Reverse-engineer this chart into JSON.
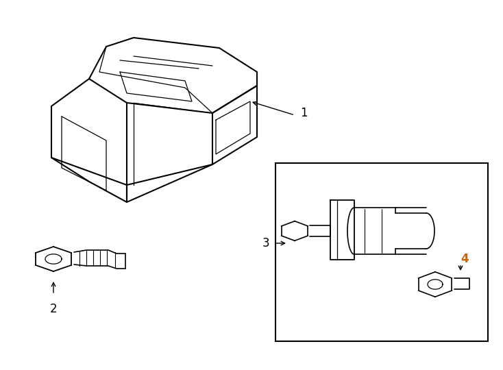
{
  "background_color": "#ffffff",
  "line_color": "#000000",
  "label_color_4": "#cc6600",
  "figsize": [
    7.34,
    5.4
  ],
  "dpi": 100
}
